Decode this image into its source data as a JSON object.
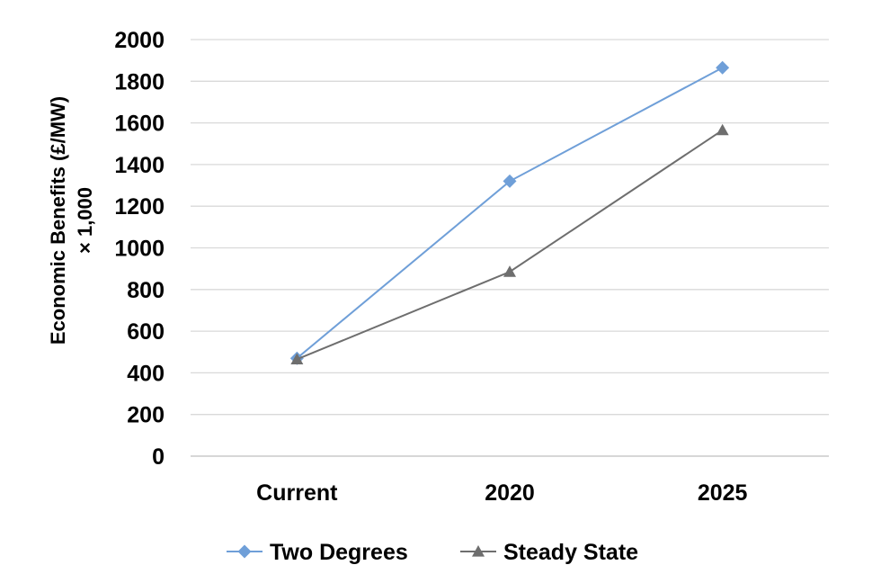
{
  "chart_data": {
    "type": "line",
    "title": "",
    "xlabel": "",
    "ylabel_line1": "Economic Benefits (£/MW)",
    "ylabel_line2": "× 1,000",
    "categories": [
      "Current",
      "2020",
      "2025"
    ],
    "ylim": [
      0,
      2000
    ],
    "yticks": [
      0,
      200,
      400,
      600,
      800,
      1000,
      1200,
      1400,
      1600,
      1800,
      2000
    ],
    "grid": true,
    "legend_position": "bottom",
    "series": [
      {
        "name": "Two Degrees",
        "values": [
          470,
          1320,
          1865
        ],
        "color": "#6f9fd8",
        "marker": "diamond"
      },
      {
        "name": "Steady State",
        "values": [
          465,
          885,
          1565
        ],
        "color": "#6e6e6e",
        "marker": "triangle"
      }
    ]
  }
}
